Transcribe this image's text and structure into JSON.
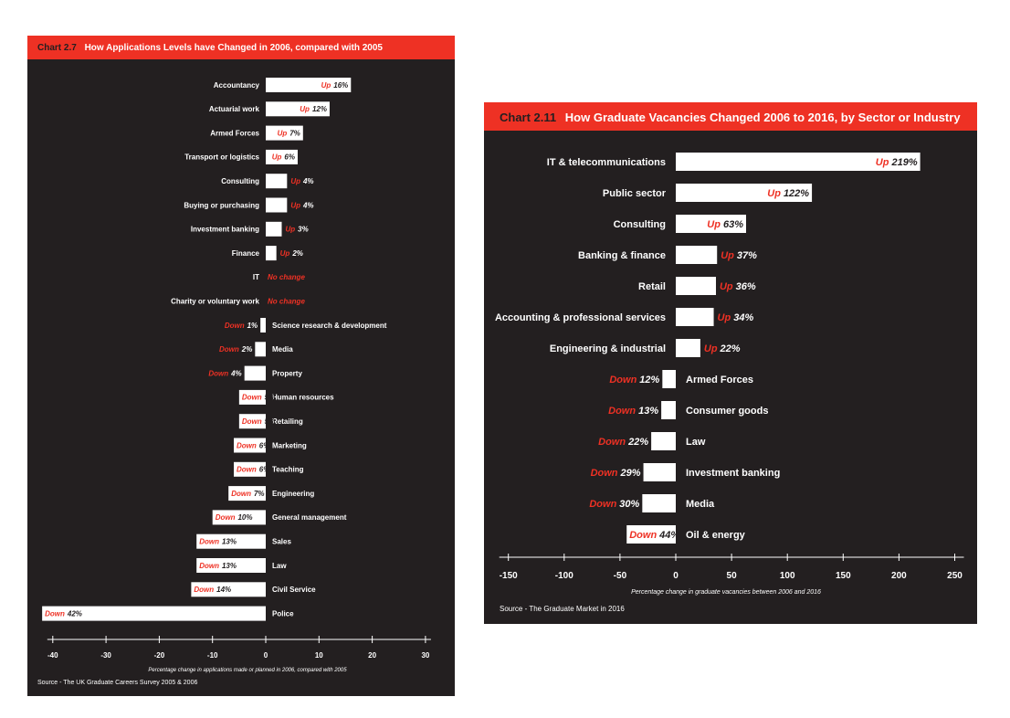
{
  "chart_data": [
    {
      "type": "bar",
      "orientation": "horizontal",
      "title_prefix": "Chart 2.7",
      "title": "How Applications Levels have Changed in 2006, compared with 2005",
      "xlabel": "Percentage change in applications made or planned in 2006, compared with 2005",
      "source": "Source - The UK Graduate Careers Survey 2005 & 2006",
      "xlim": [
        -40,
        30
      ],
      "xticks": [
        -40,
        -30,
        -20,
        -10,
        0,
        10,
        20,
        30
      ],
      "categories": [
        "Accountancy",
        "Actuarial work",
        "Armed Forces",
        "Transport or logistics",
        "Consulting",
        "Buying or purchasing",
        "Investment banking",
        "Finance",
        "IT",
        "Charity or voluntary work",
        "Science research & development",
        "Media",
        "Property",
        "Human resources",
        "Retailing",
        "Marketing",
        "Teaching",
        "Engineering",
        "General management",
        "Sales",
        "Law",
        "Civil Service",
        "Police"
      ],
      "values": [
        16,
        12,
        7,
        6,
        4,
        4,
        3,
        2,
        0,
        0,
        -1,
        -2,
        -4,
        -5,
        -5,
        -6,
        -6,
        -7,
        -10,
        -13,
        -13,
        -14,
        -42
      ],
      "value_labels": [
        {
          "dir": "Up",
          "num": "16%"
        },
        {
          "dir": "Up",
          "num": "12%"
        },
        {
          "dir": "Up",
          "num": "7%"
        },
        {
          "dir": "Up",
          "num": "6%"
        },
        {
          "dir": "Up",
          "num": "4%"
        },
        {
          "dir": "Up",
          "num": "4%"
        },
        {
          "dir": "Up",
          "num": "3%"
        },
        {
          "dir": "Up",
          "num": "2%"
        },
        {
          "dir": "No change",
          "num": ""
        },
        {
          "dir": "No change",
          "num": ""
        },
        {
          "dir": "Down",
          "num": "1%"
        },
        {
          "dir": "Down",
          "num": "2%"
        },
        {
          "dir": "Down",
          "num": "4%"
        },
        {
          "dir": "Down",
          "num": "5%"
        },
        {
          "dir": "Down",
          "num": "5%"
        },
        {
          "dir": "Down",
          "num": "6%"
        },
        {
          "dir": "Down",
          "num": "6%"
        },
        {
          "dir": "Down",
          "num": "7%"
        },
        {
          "dir": "Down",
          "num": "10%"
        },
        {
          "dir": "Down",
          "num": "13%"
        },
        {
          "dir": "Down",
          "num": "13%"
        },
        {
          "dir": "Down",
          "num": "14%"
        },
        {
          "dir": "Down",
          "num": "42%"
        }
      ]
    },
    {
      "type": "bar",
      "orientation": "horizontal",
      "title_prefix": "Chart 2.11",
      "title": "How Graduate Vacancies Changed 2006 to 2016, by Sector or Industry",
      "xlabel": "Percentage change in graduate vacancies between 2006 and 2016",
      "source": "Source - The Graduate Market in 2016",
      "xlim": [
        -150,
        250
      ],
      "xticks": [
        -150,
        -100,
        -50,
        0,
        50,
        100,
        150,
        200,
        250
      ],
      "categories": [
        "IT & telecommunications",
        "Public sector",
        "Consulting",
        "Banking & finance",
        "Retail",
        "Accounting & professional services",
        "Engineering & industrial",
        "Armed Forces",
        "Consumer goods",
        "Law",
        "Investment banking",
        "Media",
        "Oil & energy"
      ],
      "values": [
        219,
        122,
        63,
        37,
        36,
        34,
        22,
        -12,
        -13,
        -22,
        -29,
        -30,
        -44
      ],
      "value_labels": [
        {
          "dir": "Up",
          "num": "219%"
        },
        {
          "dir": "Up",
          "num": "122%"
        },
        {
          "dir": "Up",
          "num": "63%"
        },
        {
          "dir": "Up",
          "num": "37%"
        },
        {
          "dir": "Up",
          "num": "36%"
        },
        {
          "dir": "Up",
          "num": "34%"
        },
        {
          "dir": "Up",
          "num": "22%"
        },
        {
          "dir": "Down",
          "num": "12%"
        },
        {
          "dir": "Down",
          "num": "13%"
        },
        {
          "dir": "Down",
          "num": "22%"
        },
        {
          "dir": "Down",
          "num": "29%"
        },
        {
          "dir": "Down",
          "num": "30%"
        },
        {
          "dir": "Down",
          "num": "44%"
        }
      ]
    }
  ],
  "colors": {
    "panel": "#231f20",
    "accent": "#ee3124",
    "bar": "#ffffff"
  }
}
